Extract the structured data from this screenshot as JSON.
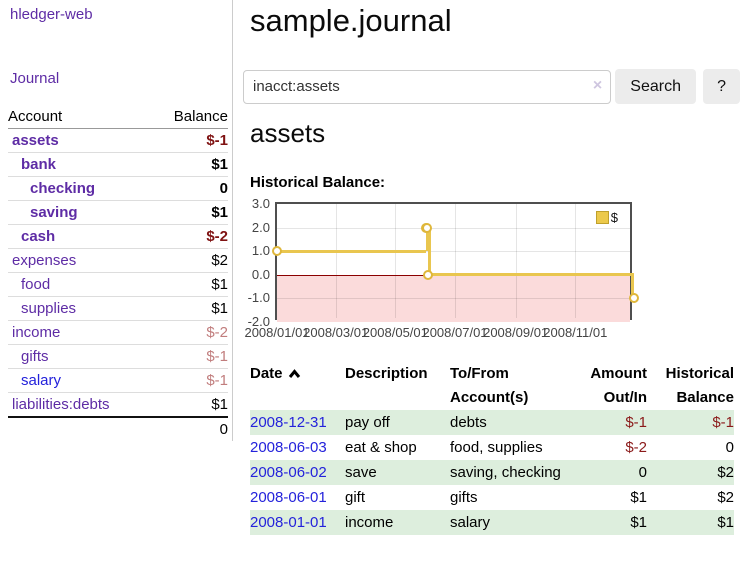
{
  "sidebar": {
    "app_title": "hledger-web",
    "nav": {
      "journal": "Journal"
    },
    "accounts_table": {
      "headers": {
        "account": "Account",
        "balance": "Balance"
      },
      "rows": [
        {
          "name": "assets",
          "depth": 1,
          "bold": true,
          "link_color": "purple",
          "balance": "$-1",
          "balance_class": "neg-strong"
        },
        {
          "name": "bank",
          "depth": 2,
          "bold": true,
          "link_color": "purple",
          "balance": "$1",
          "balance_class": ""
        },
        {
          "name": "checking",
          "depth": 3,
          "bold": true,
          "link_color": "purple",
          "balance": "0",
          "balance_class": ""
        },
        {
          "name": "saving",
          "depth": 3,
          "bold": true,
          "link_color": "purple",
          "balance": "$1",
          "balance_class": ""
        },
        {
          "name": "cash",
          "depth": 2,
          "bold": true,
          "link_color": "purple",
          "balance": "$-2",
          "balance_class": "neg-strong"
        },
        {
          "name": "expenses",
          "depth": 1,
          "bold": false,
          "link_color": "purple",
          "balance": "$2",
          "balance_class": ""
        },
        {
          "name": "food",
          "depth": 2,
          "bold": false,
          "link_color": "purple",
          "balance": "$1",
          "balance_class": ""
        },
        {
          "name": "supplies",
          "depth": 2,
          "bold": false,
          "link_color": "purple",
          "balance": "$1",
          "balance_class": ""
        },
        {
          "name": "income",
          "depth": 1,
          "bold": false,
          "link_color": "purple",
          "balance": "$-2",
          "balance_class": "neg-soft"
        },
        {
          "name": "gifts",
          "depth": 2,
          "bold": false,
          "link_color": "purple",
          "balance": "$-1",
          "balance_class": "neg-soft"
        },
        {
          "name": "salary",
          "depth": 2,
          "bold": false,
          "link_color": "blue",
          "balance": "$-1",
          "balance_class": "neg-soft"
        },
        {
          "name": "liabilities:debts",
          "depth": 1,
          "bold": false,
          "link_color": "purple",
          "balance": "$1",
          "balance_class": ""
        }
      ],
      "total": "0"
    }
  },
  "header": {
    "title": "sample.journal"
  },
  "search": {
    "value": "inacct:assets",
    "clear_icon": "×",
    "search_button": "Search",
    "help_button": "?"
  },
  "register": {
    "heading": "assets",
    "chart_title": "Historical Balance:"
  },
  "chart_data": {
    "type": "line",
    "subtype": "step-after",
    "title": "Historical Balance",
    "series": [
      {
        "name": "$",
        "points": [
          {
            "date": "2008-01-01",
            "value": 1
          },
          {
            "date": "2008-06-01",
            "value": 2
          },
          {
            "date": "2008-06-02",
            "value": 2
          },
          {
            "date": "2008-06-03",
            "value": 0
          },
          {
            "date": "2008-12-31",
            "value": -1
          }
        ]
      }
    ],
    "x_range": [
      "2008-01-01",
      "2008-12-31"
    ],
    "ylim": [
      -2,
      3
    ],
    "yticks": [
      {
        "v": 3,
        "label": "3.0"
      },
      {
        "v": 2,
        "label": "2.0"
      },
      {
        "v": 1,
        "label": "1.0"
      },
      {
        "v": 0,
        "label": "0.0"
      },
      {
        "v": -1,
        "label": "-1.0"
      },
      {
        "v": -2,
        "label": "-2.0"
      }
    ],
    "xticks": [
      {
        "date": "2008-01-01",
        "label": "2008/01/01"
      },
      {
        "date": "2008-03-01",
        "label": "2008/03/01"
      },
      {
        "date": "2008-05-01",
        "label": "2008/05/01"
      },
      {
        "date": "2008-07-01",
        "label": "2008/07/01"
      },
      {
        "date": "2008-09-01",
        "label": "2008/09/01"
      },
      {
        "date": "2008-11-01",
        "label": "2008/11/01"
      }
    ],
    "legend": {
      "label": "$",
      "position": "top-right"
    },
    "grid": true,
    "line_color": "#e9c64f",
    "negative_region_fill": "#fbdbdb",
    "zero_line_color": "#8b0000"
  },
  "transactions": {
    "headers": {
      "date": "Date",
      "description": "Description",
      "tofrom": "To/From Account(s)",
      "amount": "Amount Out/In",
      "balance": "Historical Balance"
    },
    "sort": {
      "column": "date",
      "direction": "ascending"
    },
    "rows": [
      {
        "date": "2008-12-31",
        "description": "pay off",
        "accounts": "debts",
        "amount": "$-1",
        "amount_negative": true,
        "balance": "$-1",
        "balance_negative": true
      },
      {
        "date": "2008-06-03",
        "description": "eat & shop",
        "accounts": "food, supplies",
        "amount": "$-2",
        "amount_negative": true,
        "balance": "0",
        "balance_negative": false
      },
      {
        "date": "2008-06-02",
        "description": "save",
        "accounts": "saving, checking",
        "amount": "0",
        "amount_negative": false,
        "balance": "$2",
        "balance_negative": false
      },
      {
        "date": "2008-06-01",
        "description": "gift",
        "accounts": "gifts",
        "amount": "$1",
        "amount_negative": false,
        "balance": "$2",
        "balance_negative": false
      },
      {
        "date": "2008-01-01",
        "description": "income",
        "accounts": "salary",
        "amount": "$1",
        "amount_negative": false,
        "balance": "$1",
        "balance_negative": false
      }
    ]
  }
}
